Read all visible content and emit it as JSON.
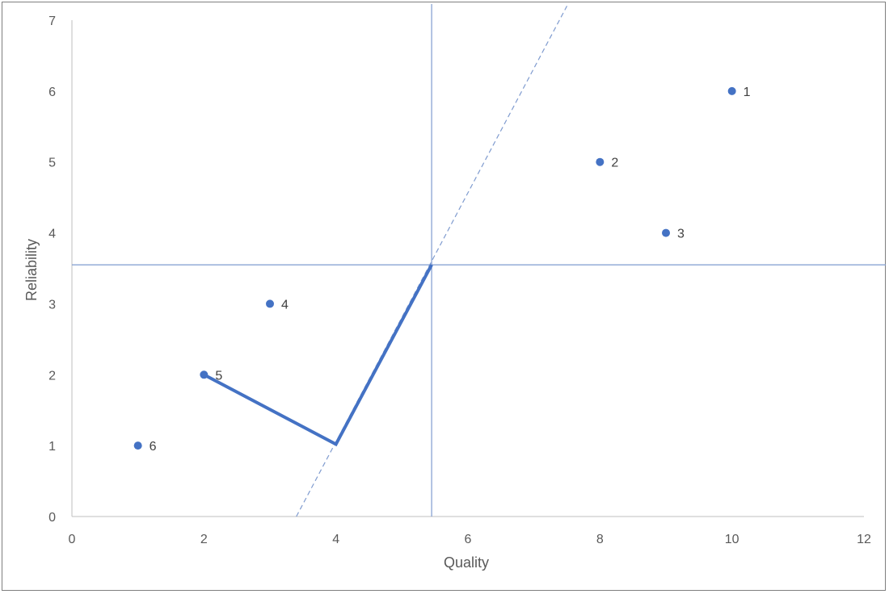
{
  "chart_data": {
    "type": "scatter",
    "xlabel": "Quality",
    "ylabel": "Reliability",
    "xlim": [
      0,
      12
    ],
    "ylim": [
      0,
      7
    ],
    "x_ticks": [
      0,
      2,
      4,
      6,
      8,
      10,
      12
    ],
    "y_ticks": [
      0,
      1,
      2,
      3,
      4,
      5,
      6,
      7
    ],
    "grid": false,
    "points": [
      {
        "label": "1",
        "x": 10,
        "y": 6
      },
      {
        "label": "2",
        "x": 8,
        "y": 5
      },
      {
        "label": "3",
        "x": 9,
        "y": 4
      },
      {
        "label": "4",
        "x": 3,
        "y": 3
      },
      {
        "label": "5",
        "x": 2,
        "y": 2
      },
      {
        "label": "6",
        "x": 1,
        "y": 1
      }
    ],
    "reference_lines": {
      "vertical_x": 5.45,
      "horizontal_y": 3.55
    },
    "dashed_line": {
      "from": [
        3.4,
        0
      ],
      "to": [
        7.5,
        7.2
      ]
    },
    "path_line": [
      [
        2,
        2
      ],
      [
        4,
        1.02
      ],
      [
        5.45,
        3.55
      ]
    ],
    "colors": {
      "marker": "#4472c4",
      "path": "#4472c4",
      "reference": "#7f9bcf",
      "axis": "#bfbfbf"
    }
  }
}
